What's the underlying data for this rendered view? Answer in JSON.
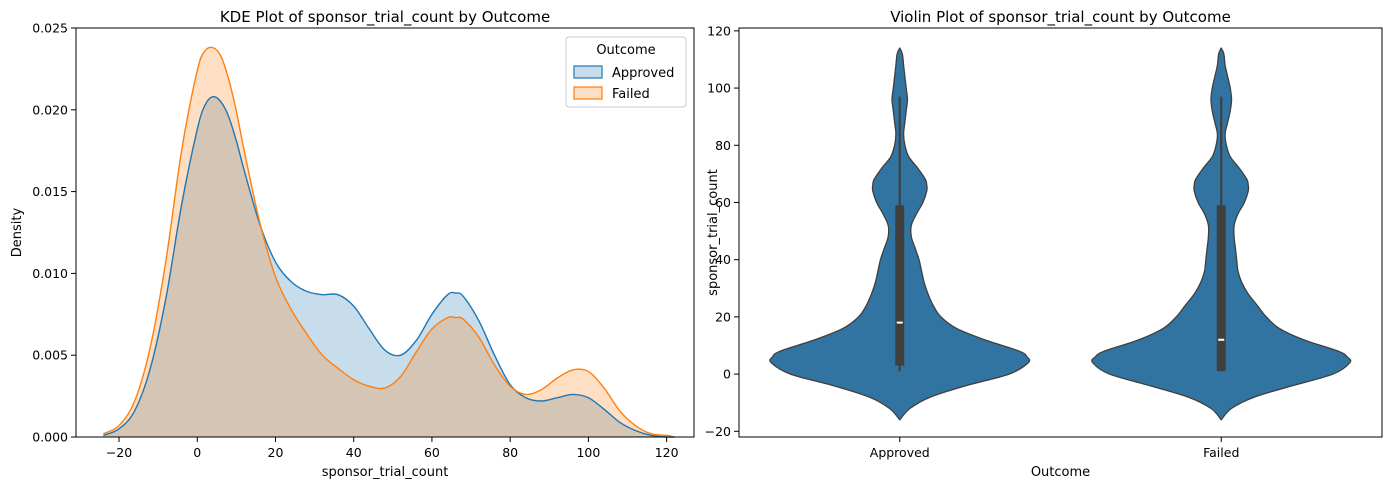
{
  "chart_data": [
    {
      "type": "area",
      "title": "KDE Plot of sponsor_trial_count by Outcome",
      "xlabel": "sponsor_trial_count",
      "ylabel": "Density",
      "xlim": [
        -31,
        127
      ],
      "ylim": [
        0,
        0.025
      ],
      "xticks": [
        -20,
        0,
        20,
        40,
        60,
        80,
        100,
        120
      ],
      "yticks": [
        0,
        0.005,
        0.01,
        0.015,
        0.02,
        0.025
      ],
      "ytick_labels": [
        "0.000",
        "0.005",
        "0.010",
        "0.015",
        "0.020",
        "0.025"
      ],
      "grid": false,
      "legend": {
        "title": "Outcome",
        "placement": "top-right"
      },
      "x": [
        -24,
        -20,
        -16,
        -12,
        -8,
        -4,
        0,
        2,
        4,
        6,
        8,
        10,
        12,
        16,
        20,
        24,
        28,
        32,
        36,
        40,
        44,
        48,
        52,
        56,
        60,
        64,
        66,
        68,
        72,
        76,
        80,
        84,
        88,
        92,
        96,
        100,
        104,
        108,
        112,
        116,
        120,
        122
      ],
      "series": [
        {
          "name": "Approved",
          "color": "#1f77b4",
          "values": [
            0.0001,
            0.0005,
            0.0016,
            0.0042,
            0.0085,
            0.0142,
            0.0188,
            0.0203,
            0.0208,
            0.0205,
            0.0196,
            0.0181,
            0.0163,
            0.013,
            0.0107,
            0.0095,
            0.0089,
            0.0087,
            0.0087,
            0.008,
            0.0066,
            0.0053,
            0.005,
            0.0059,
            0.0075,
            0.0087,
            0.0088,
            0.0086,
            0.0071,
            0.005,
            0.0032,
            0.0024,
            0.0022,
            0.0024,
            0.0026,
            0.0024,
            0.0017,
            0.0009,
            0.0004,
            0.0001,
            0.0,
            0.0
          ]
        },
        {
          "name": "Failed",
          "color": "#ff7f0e",
          "values": [
            0.0002,
            0.0007,
            0.0022,
            0.0055,
            0.0108,
            0.0175,
            0.0224,
            0.0236,
            0.0238,
            0.0233,
            0.0219,
            0.0199,
            0.0175,
            0.0131,
            0.0098,
            0.0078,
            0.0063,
            0.005,
            0.0042,
            0.0035,
            0.0031,
            0.003,
            0.0037,
            0.0052,
            0.0066,
            0.0073,
            0.0073,
            0.0072,
            0.0061,
            0.0044,
            0.0031,
            0.0026,
            0.0029,
            0.0036,
            0.0041,
            0.004,
            0.003,
            0.0016,
            0.0007,
            0.0002,
            0.0001,
            0.0
          ]
        }
      ]
    },
    {
      "type": "violin",
      "title": "Violin Plot of sponsor_trial_count by Outcome",
      "xlabel": "Outcome",
      "ylabel": "sponsor_trial_count",
      "ylim": [
        -22,
        121
      ],
      "yticks": [
        -20,
        0,
        20,
        40,
        60,
        80,
        100,
        120
      ],
      "categories": [
        "Approved",
        "Failed"
      ],
      "color": "#3274a1",
      "y": [
        -16,
        -12,
        -8,
        -4,
        0,
        4,
        6,
        8,
        12,
        16,
        20,
        24,
        28,
        32,
        36,
        40,
        44,
        48,
        52,
        56,
        60,
        64,
        66,
        68,
        72,
        76,
        80,
        84,
        88,
        92,
        96,
        100,
        104,
        108,
        112,
        114
      ],
      "violins": [
        {
          "name": "Approved",
          "half_width": [
            0.0,
            0.08,
            0.24,
            0.52,
            0.85,
            1.0,
            0.99,
            0.93,
            0.66,
            0.44,
            0.32,
            0.26,
            0.22,
            0.19,
            0.17,
            0.15,
            0.12,
            0.09,
            0.09,
            0.13,
            0.18,
            0.21,
            0.21,
            0.2,
            0.14,
            0.07,
            0.04,
            0.03,
            0.04,
            0.05,
            0.06,
            0.05,
            0.04,
            0.03,
            0.02,
            0.0
          ],
          "box": {
            "q1": 3,
            "median": 18,
            "q3": 59,
            "whisker_low": 1,
            "whisker_high": 97
          }
        },
        {
          "name": "Failed",
          "half_width": [
            0.0,
            0.08,
            0.26,
            0.56,
            0.87,
            1.0,
            0.98,
            0.91,
            0.64,
            0.45,
            0.35,
            0.28,
            0.21,
            0.16,
            0.13,
            0.12,
            0.11,
            0.1,
            0.1,
            0.13,
            0.18,
            0.21,
            0.21,
            0.2,
            0.14,
            0.07,
            0.04,
            0.03,
            0.05,
            0.07,
            0.08,
            0.07,
            0.05,
            0.03,
            0.02,
            0.0
          ],
          "box": {
            "q1": 1,
            "median": 12,
            "q3": 59,
            "whisker_low": 1,
            "whisker_high": 97
          }
        }
      ]
    }
  ]
}
